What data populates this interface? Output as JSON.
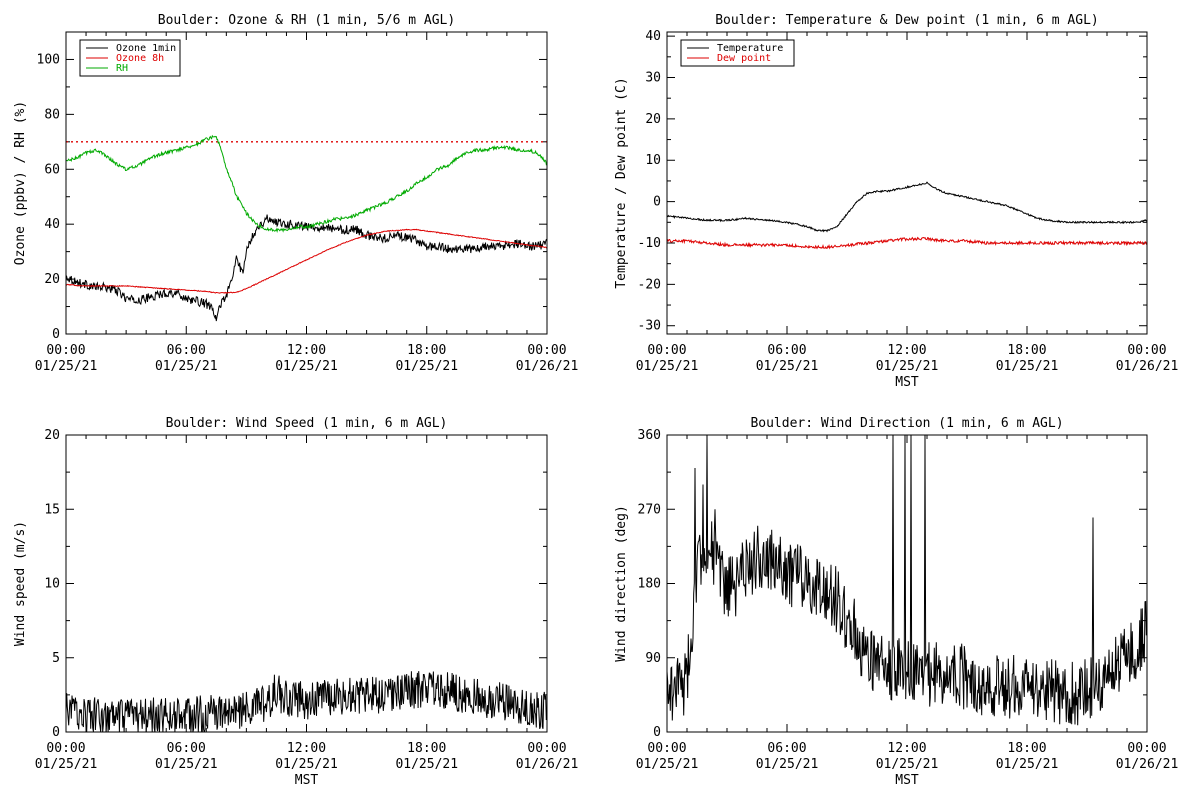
{
  "chart_data": [
    {
      "type": "line",
      "title": "Boulder: Ozone & RH (1 min, 5/6 m AGL)",
      "ylabel": "Ozone (ppbv) / RH (%)",
      "xlabel": "",
      "ylim": [
        0,
        110
      ],
      "yticks": [
        0,
        20,
        40,
        60,
        80,
        100
      ],
      "xticks": [
        {
          "time": "00:00",
          "date": "01/25/21"
        },
        {
          "time": "06:00",
          "date": "01/25/21"
        },
        {
          "time": "12:00",
          "date": "01/25/21"
        },
        {
          "time": "18:00",
          "date": "01/25/21"
        },
        {
          "time": "00:00",
          "date": "01/26/21"
        }
      ],
      "xlim": [
        0,
        24
      ],
      "legend_position": "top-left",
      "reference_line": {
        "value": 70,
        "color": "#dd0000",
        "style": "dotted"
      },
      "series": [
        {
          "name": "Ozone 1min",
          "color": "#000000",
          "jitter": 1.6,
          "x": [
            0,
            0.5,
            1,
            1.5,
            2,
            2.5,
            3,
            3.5,
            4,
            4.5,
            5,
            5.5,
            6,
            6.5,
            7,
            7.3,
            7.5,
            7.7,
            8,
            8.3,
            8.5,
            8.8,
            9,
            9.3,
            9.6,
            10,
            10.5,
            11,
            11.5,
            12,
            12.5,
            13,
            13.5,
            14,
            14.5,
            15,
            15.5,
            16,
            16.5,
            17,
            17.5,
            18,
            18.5,
            19,
            19.5,
            20,
            20.5,
            21,
            21.5,
            22,
            22.5,
            23,
            23.5,
            24
          ],
          "y": [
            21,
            19,
            18,
            17,
            17,
            16,
            13,
            12,
            13,
            14,
            15,
            15,
            13,
            12,
            11,
            9,
            5,
            11,
            14,
            20,
            28,
            22,
            30,
            36,
            39,
            42,
            41,
            40,
            40,
            39,
            39,
            39,
            38,
            38,
            38,
            36,
            35,
            35,
            36,
            35,
            34,
            32,
            32,
            31,
            31,
            31,
            31,
            32,
            32,
            32,
            33,
            32,
            32,
            33
          ]
        },
        {
          "name": "Ozone 8h",
          "color": "#dd0000",
          "jitter": 0.15,
          "x": [
            0,
            1,
            2,
            3,
            4,
            5,
            6,
            7,
            7.5,
            8,
            8.5,
            9,
            10,
            11,
            12,
            13,
            14,
            15,
            16,
            17,
            17.5,
            18,
            19,
            20,
            21,
            22,
            23,
            24
          ],
          "y": [
            18,
            17.5,
            17.5,
            17.5,
            17,
            16.5,
            16,
            15.5,
            15,
            15,
            15.2,
            16.5,
            20,
            23.5,
            27,
            30.5,
            33.5,
            36,
            37.5,
            38,
            38,
            37.5,
            36.5,
            35.5,
            34.5,
            33.5,
            32.5,
            31.5
          ]
        },
        {
          "name": "RH",
          "color": "#00aa00",
          "jitter": 0.6,
          "x": [
            0,
            0.5,
            1,
            1.5,
            2,
            2.5,
            3,
            3.5,
            4,
            4.5,
            5,
            5.5,
            6,
            6.5,
            7,
            7.5,
            7.7,
            8,
            8.3,
            8.5,
            8.8,
            9,
            9.5,
            10,
            10.5,
            11,
            11.5,
            12,
            12.5,
            13,
            13.5,
            14,
            15,
            16,
            17,
            17.5,
            18,
            18.5,
            19,
            19.5,
            20,
            20.5,
            21,
            21.5,
            22,
            22.5,
            23,
            23.5,
            24
          ],
          "y": [
            63,
            64,
            66,
            67,
            65,
            62,
            60,
            61,
            63,
            65,
            66,
            67,
            68,
            69,
            71,
            72,
            68,
            60,
            55,
            50,
            47,
            44,
            40,
            38,
            38,
            38,
            39,
            39,
            40,
            41,
            42,
            42,
            45,
            48,
            52,
            55,
            57,
            60,
            61,
            64,
            66,
            67,
            67,
            68,
            68,
            67,
            67,
            66,
            62
          ]
        }
      ]
    },
    {
      "type": "line",
      "title": "Boulder: Temperature & Dew point (1 min, 6 m AGL)",
      "ylabel": "Temperature / Dew point (C)",
      "xlabel": "MST",
      "ylim": [
        -32,
        41
      ],
      "yticks": [
        -30,
        -20,
        -10,
        0,
        10,
        20,
        30,
        40
      ],
      "xticks": [
        {
          "time": "00:00",
          "date": "01/25/21"
        },
        {
          "time": "06:00",
          "date": "01/25/21"
        },
        {
          "time": "12:00",
          "date": "01/25/21"
        },
        {
          "time": "18:00",
          "date": "01/25/21"
        },
        {
          "time": "00:00",
          "date": "01/26/21"
        }
      ],
      "xlim": [
        0,
        24
      ],
      "legend_position": "top-left",
      "series": [
        {
          "name": "Temperature",
          "color": "#000000",
          "jitter": 0.2,
          "x": [
            0,
            1,
            2,
            3,
            4,
            5,
            6,
            7,
            7.5,
            8,
            8.5,
            9,
            9.5,
            10,
            10.5,
            11,
            11.5,
            12,
            12.5,
            13,
            13.5,
            14,
            15,
            16,
            17,
            17.5,
            18,
            18.5,
            19,
            20,
            21,
            22,
            23,
            23.5,
            24
          ],
          "y": [
            -3.5,
            -4,
            -4.5,
            -4.5,
            -4,
            -4.5,
            -5,
            -6,
            -7,
            -7,
            -6,
            -3,
            0,
            2,
            2.5,
            2.5,
            3,
            3.5,
            4,
            4.5,
            3,
            2,
            1,
            0,
            -1,
            -2,
            -3,
            -4,
            -4.5,
            -5,
            -5,
            -5,
            -5,
            -5,
            -4.5
          ]
        },
        {
          "name": "Dew point",
          "color": "#dd0000",
          "jitter": 0.35,
          "x": [
            0,
            1,
            2,
            3,
            4,
            5,
            6,
            7,
            8,
            9,
            10,
            11,
            12,
            13,
            14,
            15,
            16,
            17,
            18,
            19,
            20,
            21,
            22,
            23,
            24
          ],
          "y": [
            -9.5,
            -9.5,
            -10,
            -10.5,
            -10.5,
            -10.5,
            -10.5,
            -11,
            -11,
            -10.5,
            -10,
            -9.5,
            -9,
            -9,
            -9.5,
            -9.5,
            -10,
            -10,
            -10,
            -10,
            -10,
            -10,
            -10,
            -10,
            -10
          ]
        }
      ]
    },
    {
      "type": "line",
      "title": "Boulder: Wind Speed (1 min, 6 m AGL)",
      "ylabel": "Wind speed (m/s)",
      "xlabel": "MST",
      "ylim": [
        0,
        20
      ],
      "yticks": [
        0,
        5,
        10,
        15,
        20
      ],
      "xticks": [
        {
          "time": "00:00",
          "date": "01/25/21"
        },
        {
          "time": "06:00",
          "date": "01/25/21"
        },
        {
          "time": "12:00",
          "date": "01/25/21"
        },
        {
          "time": "18:00",
          "date": "01/25/21"
        },
        {
          "time": "00:00",
          "date": "01/26/21"
        }
      ],
      "xlim": [
        0,
        24
      ],
      "series": [
        {
          "name": "",
          "color": "#000000",
          "jitter": 1.3,
          "x": [
            0,
            1,
            2,
            3,
            4,
            5,
            6,
            7,
            8,
            9,
            10,
            10.5,
            11,
            12,
            13,
            14,
            15,
            16,
            17,
            18,
            19,
            20,
            21,
            22,
            23,
            24
          ],
          "y": [
            1.5,
            1.2,
            0.9,
            0.9,
            1.0,
            1.1,
            1.1,
            1.2,
            1.3,
            1.5,
            1.9,
            2.8,
            2.2,
            2.1,
            2.3,
            2.5,
            2.4,
            2.6,
            2.8,
            3.0,
            2.8,
            2.5,
            2.2,
            2.0,
            1.7,
            1.4
          ]
        }
      ]
    },
    {
      "type": "line",
      "title": "Boulder: Wind Direction (1 min, 6 m AGL)",
      "ylabel": "Wind direction (deg)",
      "xlabel": "MST",
      "ylim": [
        0,
        360
      ],
      "yticks": [
        0,
        90,
        180,
        270,
        360
      ],
      "xticks": [
        {
          "time": "00:00",
          "date": "01/25/21"
        },
        {
          "time": "06:00",
          "date": "01/25/21"
        },
        {
          "time": "12:00",
          "date": "01/25/21"
        },
        {
          "time": "18:00",
          "date": "01/25/21"
        },
        {
          "time": "00:00",
          "date": "01/26/21"
        }
      ],
      "xlim": [
        0,
        24
      ],
      "series": [
        {
          "name": "",
          "color": "#000000",
          "jitter": 40,
          "spikes": [
            [
              1.4,
              320
            ],
            [
              1.8,
              300
            ],
            [
              2.0,
              360
            ],
            [
              2.4,
              270
            ],
            [
              11.3,
              360
            ],
            [
              11.9,
              360
            ],
            [
              12.2,
              360
            ],
            [
              12.9,
              360
            ],
            [
              21.3,
              260
            ]
          ],
          "x": [
            0,
            1,
            1.5,
            2,
            2.5,
            3,
            3.5,
            4,
            4.5,
            5,
            5.5,
            6,
            6.5,
            7,
            7.5,
            8,
            8.5,
            9,
            9.5,
            10,
            11,
            12,
            13,
            14,
            15,
            16,
            17,
            18,
            19,
            20,
            21,
            22,
            22.5,
            23,
            23.5,
            24
          ],
          "y": [
            50,
            60,
            200,
            230,
            200,
            170,
            180,
            200,
            210,
            215,
            200,
            190,
            190,
            185,
            180,
            170,
            160,
            130,
            120,
            90,
            80,
            75,
            70,
            75,
            65,
            55,
            55,
            50,
            50,
            45,
            50,
            60,
            80,
            95,
            100,
            125
          ]
        }
      ]
    }
  ]
}
